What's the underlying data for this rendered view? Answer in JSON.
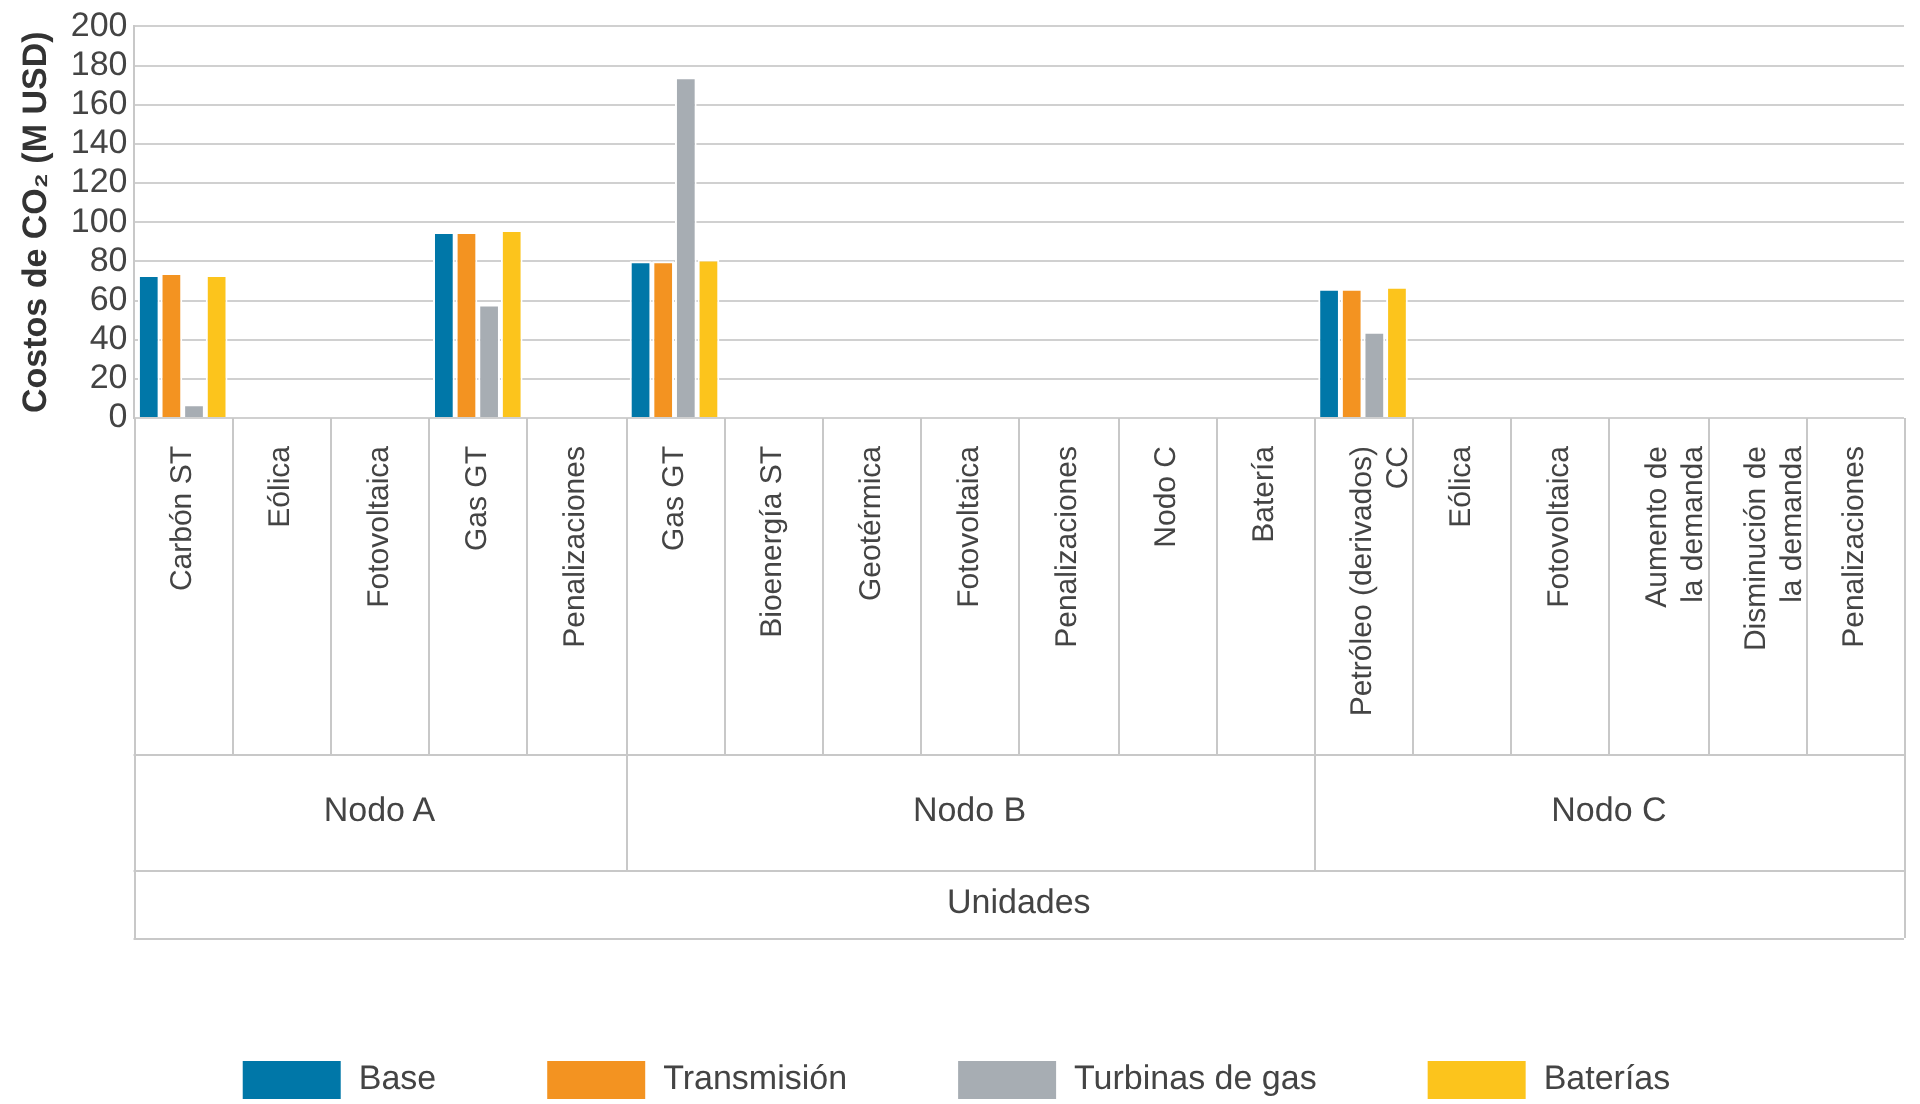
{
  "chart_data": {
    "type": "bar",
    "ylabel": "Costos de CO₂ (M USD)",
    "xlabel": "Unidades",
    "categories": [
      "Carbón ST",
      "Eólica",
      "Fotovoltaica",
      "Gas GT",
      "Penalizaciones",
      "Gas GT",
      "Bioenergía ST",
      "Geotérmica",
      "Fotovoltaica",
      "Penalizaciones",
      "Nodo C",
      "Batería",
      "Petróleo (derivados) CC",
      "Eólica",
      "Fotovoltaica",
      "Aumento de la demanda",
      "Disminución de la demanda",
      "Penalizaciones"
    ],
    "annotations": [
      "Nodo A",
      "Nodo B",
      "Nodo C"
    ],
    "series": [
      {
        "name": "Base",
        "color": "#0077a8",
        "values": [
          73,
          0,
          0,
          95,
          0,
          80,
          0,
          0,
          0,
          0,
          0,
          0,
          66,
          0,
          0,
          0,
          0,
          0
        ]
      },
      {
        "name": "Transmisión",
        "color": "#f39321",
        "values": [
          74,
          0,
          0,
          95,
          0,
          80,
          0,
          0,
          0,
          0,
          0,
          0,
          66,
          0,
          0,
          0,
          0,
          0
        ]
      },
      {
        "name": "Turbinas de gas",
        "color": "#a7adb3",
        "values": [
          7,
          0,
          0,
          58,
          0,
          174,
          0,
          0,
          0,
          0,
          0,
          0,
          44,
          0,
          0,
          0,
          0,
          0
        ]
      },
      {
        "name": "Baterías",
        "color": "#fcc41c",
        "values": [
          73,
          0,
          0,
          96,
          0,
          81,
          0,
          0,
          0,
          0,
          0,
          0,
          67,
          0,
          0,
          0,
          0,
          0
        ]
      }
    ],
    "ylim": [
      0,
      200
    ],
    "yticks": [
      0,
      20,
      40,
      60,
      80,
      100,
      120,
      140,
      160,
      180,
      200
    ],
    "grid": "y",
    "legend": "bottom"
  }
}
